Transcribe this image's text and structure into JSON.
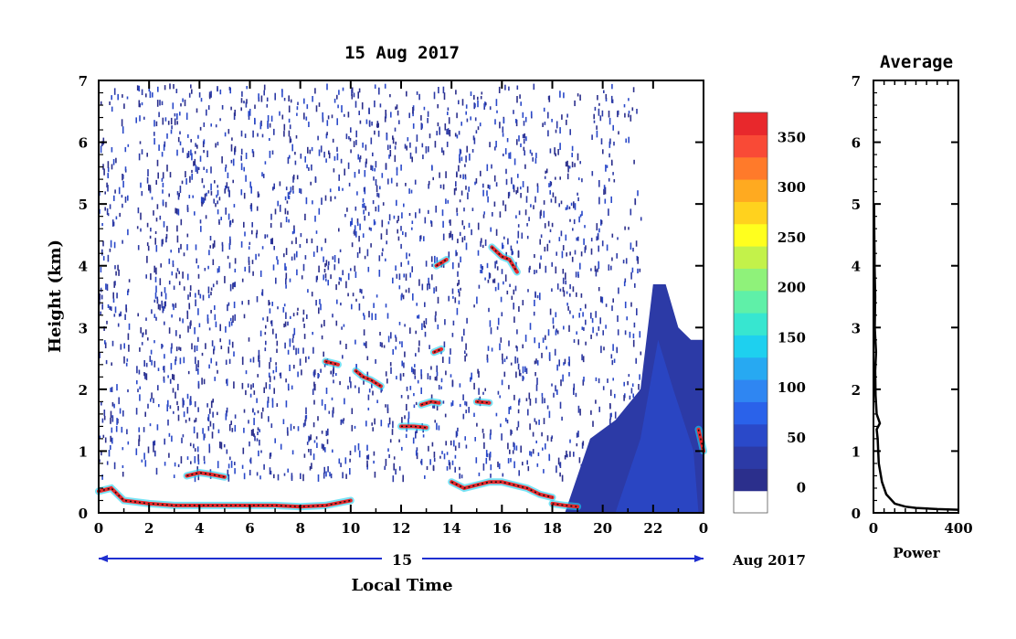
{
  "chart_data": [
    {
      "type": "heatmap",
      "title": "15 Aug 2017",
      "xlabel": "Local Time",
      "ylabel": "Height (km)",
      "xlim": [
        0,
        24
      ],
      "ylim": [
        0,
        7
      ],
      "x_ticks": [
        "0",
        "2",
        "4",
        "6",
        "8",
        "10",
        "12",
        "14",
        "16",
        "18",
        "20",
        "22",
        "0"
      ],
      "y_ticks": [
        "0",
        "1",
        "2",
        "3",
        "4",
        "5",
        "6",
        "7"
      ],
      "date_day": "15",
      "date_month": "Aug 2017",
      "colorbar": {
        "min": -25,
        "max": 375,
        "ticks": [
          {
            "value": 0,
            "label": "0"
          },
          {
            "value": 50,
            "label": "50"
          },
          {
            "value": 100,
            "label": "100"
          },
          {
            "value": 150,
            "label": "150"
          },
          {
            "value": 200,
            "label": "200"
          },
          {
            "value": 250,
            "label": "250"
          },
          {
            "value": 300,
            "label": "300"
          },
          {
            "value": 350,
            "label": "350"
          }
        ],
        "colors": [
          "#ffffff",
          "#2b2f8c",
          "#2c3aa6",
          "#2a49c9",
          "#2a62ea",
          "#2f86f2",
          "#27a9f2",
          "#1ed0ef",
          "#37e6d0",
          "#5ff0a8",
          "#8ff27a",
          "#c3f24a",
          "#ffff1e",
          "#ffd21e",
          "#ffaa20",
          "#ff7a2a",
          "#f94a36",
          "#e8282c"
        ]
      },
      "features": [
        {
          "x": [
            0.0,
            0.5,
            1.0,
            2.0,
            3.0,
            4.0,
            5.0,
            6.0,
            7.0,
            8.0,
            9.0,
            10.0
          ],
          "y": [
            0.35,
            0.4,
            0.2,
            0.15,
            0.12,
            0.12,
            0.12,
            0.12,
            0.12,
            0.1,
            0.12,
            0.2
          ]
        },
        {
          "x": [
            3.5,
            4.0,
            4.5,
            5.0
          ],
          "y": [
            0.6,
            0.65,
            0.62,
            0.58
          ]
        },
        {
          "x": [
            9.0,
            9.5
          ],
          "y": [
            2.45,
            2.4
          ]
        },
        {
          "x": [
            10.2,
            10.5,
            10.8,
            11.2
          ],
          "y": [
            2.3,
            2.2,
            2.15,
            2.05
          ]
        },
        {
          "x": [
            12.0,
            12.5,
            13.0
          ],
          "y": [
            1.4,
            1.4,
            1.38
          ]
        },
        {
          "x": [
            12.8,
            13.2,
            13.5
          ],
          "y": [
            1.75,
            1.8,
            1.78
          ]
        },
        {
          "x": [
            13.3,
            13.6
          ],
          "y": [
            2.6,
            2.65
          ]
        },
        {
          "x": [
            13.4,
            13.8
          ],
          "y": [
            4.0,
            4.1
          ]
        },
        {
          "x": [
            15.0,
            15.5
          ],
          "y": [
            1.8,
            1.78
          ]
        },
        {
          "x": [
            15.6,
            16.0,
            16.3,
            16.6
          ],
          "y": [
            4.3,
            4.15,
            4.1,
            3.9
          ]
        },
        {
          "x": [
            14.0,
            14.5,
            15.0,
            15.5,
            16.0,
            16.5,
            17.0,
            17.5,
            18.0
          ],
          "y": [
            0.5,
            0.4,
            0.45,
            0.5,
            0.5,
            0.45,
            0.4,
            0.3,
            0.25
          ]
        },
        {
          "x": [
            18.0,
            18.5,
            19.0
          ],
          "y": [
            0.15,
            0.12,
            0.1
          ]
        },
        {
          "x": [
            23.8,
            24.0
          ],
          "y": [
            1.35,
            1.0
          ]
        }
      ],
      "low_power_region": [
        [
          18.5,
          0
        ],
        [
          19.5,
          1.2
        ],
        [
          20.5,
          1.5
        ],
        [
          21.5,
          2.0
        ],
        [
          22.0,
          3.7
        ],
        [
          22.5,
          3.7
        ],
        [
          23.0,
          3.0
        ],
        [
          23.5,
          2.8
        ],
        [
          24.0,
          2.8
        ],
        [
          24.0,
          0
        ]
      ]
    },
    {
      "type": "line",
      "title": "Average",
      "xlabel": "Power",
      "ylabel": "",
      "xlim": [
        0,
        400
      ],
      "ylim": [
        0,
        7
      ],
      "x_ticks": [
        "0",
        "400"
      ],
      "y_ticks": [
        "0",
        "1",
        "2",
        "3",
        "4",
        "5",
        "6",
        "7"
      ],
      "x": [
        400,
        300,
        200,
        150,
        100,
        60,
        40,
        25,
        20,
        15,
        30,
        15,
        10,
        8,
        12,
        6,
        8,
        5,
        5,
        4,
        3
      ],
      "y": [
        0.05,
        0.06,
        0.08,
        0.1,
        0.15,
        0.3,
        0.5,
        0.8,
        1.2,
        1.35,
        1.45,
        1.6,
        1.9,
        2.3,
        2.6,
        3.0,
        3.5,
        4.0,
        4.2,
        4.5,
        5.0
      ]
    }
  ]
}
